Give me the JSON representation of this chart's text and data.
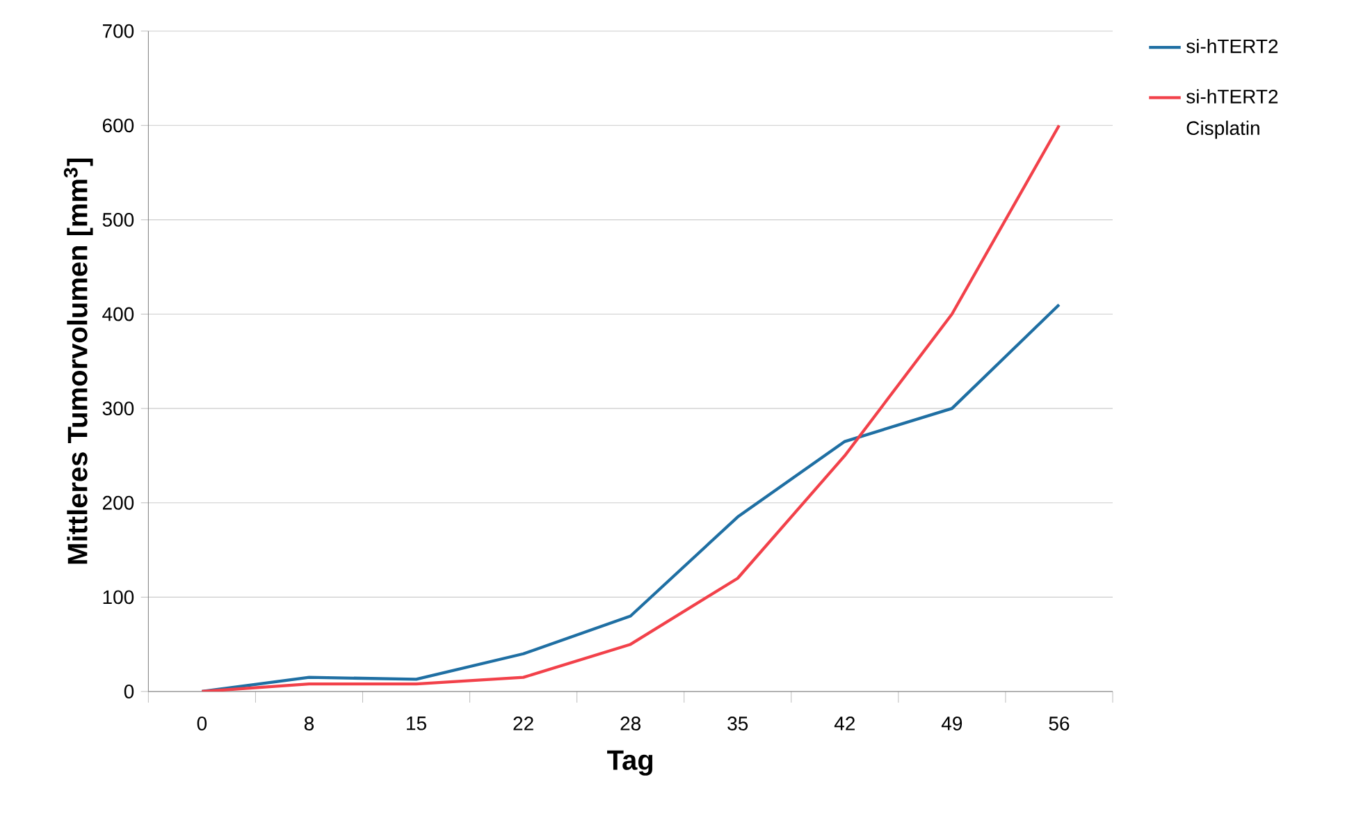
{
  "chart_data": {
    "type": "line",
    "xlabel": "Tag",
    "ylabel": "Mittleres Tumorvolumen [mm$^{3}$]",
    "categories": [
      "0",
      "8",
      "15",
      "22",
      "28",
      "35",
      "42",
      "49",
      "56"
    ],
    "series": [
      {
        "name": "si-hTERT2",
        "color": "#1f6fa3",
        "values": [
          0,
          15,
          13,
          40,
          80,
          185,
          265,
          300,
          410
        ]
      },
      {
        "name": "si-hTERT2 Cisplatin",
        "color": "#f2414a",
        "values": [
          0,
          8,
          8,
          15,
          50,
          120,
          250,
          400,
          600
        ]
      }
    ],
    "ylim": [
      0,
      700
    ],
    "yticks": [
      0,
      100,
      200,
      300,
      400,
      500,
      600,
      700
    ],
    "grid": "y",
    "legend": "right"
  }
}
